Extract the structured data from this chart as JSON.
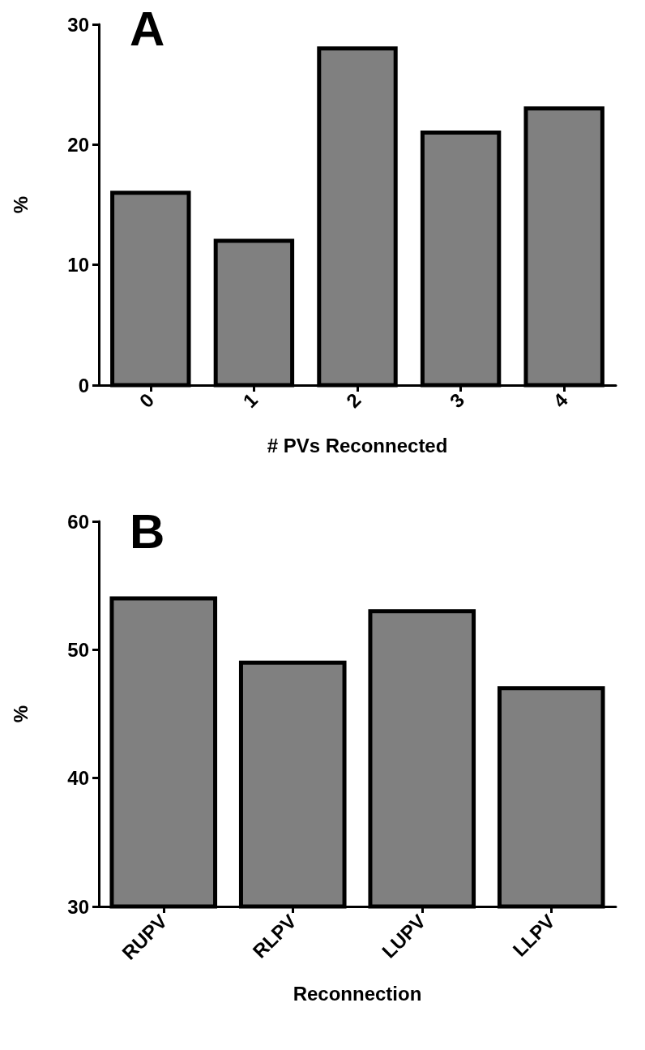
{
  "chart_data": [
    {
      "type": "bar",
      "title": "A",
      "categories": [
        "0",
        "1",
        "2",
        "3",
        "4"
      ],
      "values": [
        16,
        12,
        28,
        21,
        23
      ],
      "color": "#808080",
      "xlabel": "# PVs Reconnected",
      "ylabel": "%",
      "ylim": [
        0,
        30
      ],
      "yticks": [
        0,
        10,
        20,
        30
      ],
      "grid": false
    },
    {
      "type": "bar",
      "title": "B",
      "categories": [
        "RUPV",
        "RLPV",
        "LUPV",
        "LLPV"
      ],
      "values": [
        54,
        49,
        53,
        47
      ],
      "color": "#808080",
      "xlabel": "Reconnection",
      "ylabel": "%",
      "ylim": [
        30,
        60
      ],
      "yticks": [
        30,
        40,
        50,
        60
      ],
      "grid": false
    }
  ]
}
